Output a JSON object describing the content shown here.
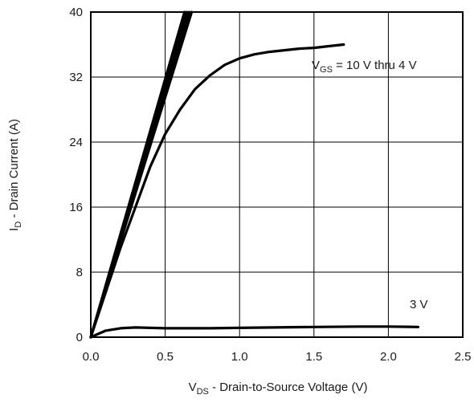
{
  "chart_data": {
    "type": "line",
    "title": "",
    "xlabel": {
      "main": "V",
      "sub": "DS",
      "rest": " - Drain-to-Source Voltage (V)"
    },
    "ylabel": {
      "main": "I",
      "sub": "D",
      "rest": " - Drain Current (A)"
    },
    "xlim": [
      0,
      2.5
    ],
    "ylim": [
      0,
      40
    ],
    "x_ticks": [
      0,
      0.5,
      1.0,
      1.5,
      2.0,
      2.5
    ],
    "x_tick_labels": [
      "0.0",
      "0.5",
      "1.0",
      "1.5",
      "2.0",
      "2.5"
    ],
    "y_ticks": [
      0,
      8,
      16,
      24,
      32,
      40
    ],
    "y_tick_labels": [
      "0",
      "8",
      "16",
      "24",
      "32",
      "40"
    ],
    "grid": true,
    "annotations": {
      "vgs_main": "V",
      "vgs_sub": "GS",
      "vgs_rest": " = 10 V thru 4 V",
      "three_v": "3 V"
    },
    "series": [
      {
        "values": [
          [
            0,
            0
          ],
          [
            0.1,
            5.9
          ],
          [
            0.2,
            11.8
          ],
          [
            0.3,
            17.7
          ],
          [
            0.4,
            23.6
          ],
          [
            0.5,
            29.5
          ],
          [
            0.6,
            35.4
          ],
          [
            0.678,
            40
          ]
        ]
      },
      {
        "values": [
          [
            0,
            0
          ],
          [
            0.1,
            6.05
          ],
          [
            0.2,
            12.1
          ],
          [
            0.3,
            18.15
          ],
          [
            0.4,
            24.2
          ],
          [
            0.5,
            30.25
          ],
          [
            0.6,
            36.3
          ],
          [
            0.661,
            40
          ]
        ]
      },
      {
        "values": [
          [
            0,
            0
          ],
          [
            0.1,
            6.2
          ],
          [
            0.2,
            12.4
          ],
          [
            0.3,
            18.6
          ],
          [
            0.4,
            24.8
          ],
          [
            0.5,
            31.0
          ],
          [
            0.6,
            37.2
          ],
          [
            0.645,
            40
          ]
        ]
      },
      {
        "values": [
          [
            0,
            0
          ],
          [
            0.1,
            6.35
          ],
          [
            0.2,
            12.7
          ],
          [
            0.3,
            19.05
          ],
          [
            0.4,
            25.4
          ],
          [
            0.5,
            31.75
          ],
          [
            0.6,
            38.1
          ],
          [
            0.63,
            40
          ]
        ]
      },
      {
        "values": [
          [
            0,
            0
          ],
          [
            0.1,
            5.5
          ],
          [
            0.2,
            11.0
          ],
          [
            0.3,
            16.0
          ],
          [
            0.4,
            21.0
          ],
          [
            0.5,
            25.0
          ],
          [
            0.6,
            28.0
          ],
          [
            0.7,
            30.5
          ],
          [
            0.8,
            32.2
          ],
          [
            0.9,
            33.5
          ],
          [
            1.0,
            34.3
          ],
          [
            1.1,
            34.8
          ],
          [
            1.2,
            35.1
          ],
          [
            1.3,
            35.3
          ],
          [
            1.4,
            35.5
          ],
          [
            1.5,
            35.6
          ],
          [
            1.6,
            35.8
          ],
          [
            1.7,
            36.0
          ]
        ]
      },
      {
        "values": [
          [
            0,
            0
          ],
          [
            0.05,
            0.4
          ],
          [
            0.1,
            0.8
          ],
          [
            0.2,
            1.1
          ],
          [
            0.3,
            1.2
          ],
          [
            0.5,
            1.1
          ],
          [
            0.8,
            1.1
          ],
          [
            1.0,
            1.15
          ],
          [
            1.5,
            1.25
          ],
          [
            1.8,
            1.3
          ],
          [
            2.0,
            1.3
          ],
          [
            2.2,
            1.25
          ]
        ]
      }
    ]
  }
}
